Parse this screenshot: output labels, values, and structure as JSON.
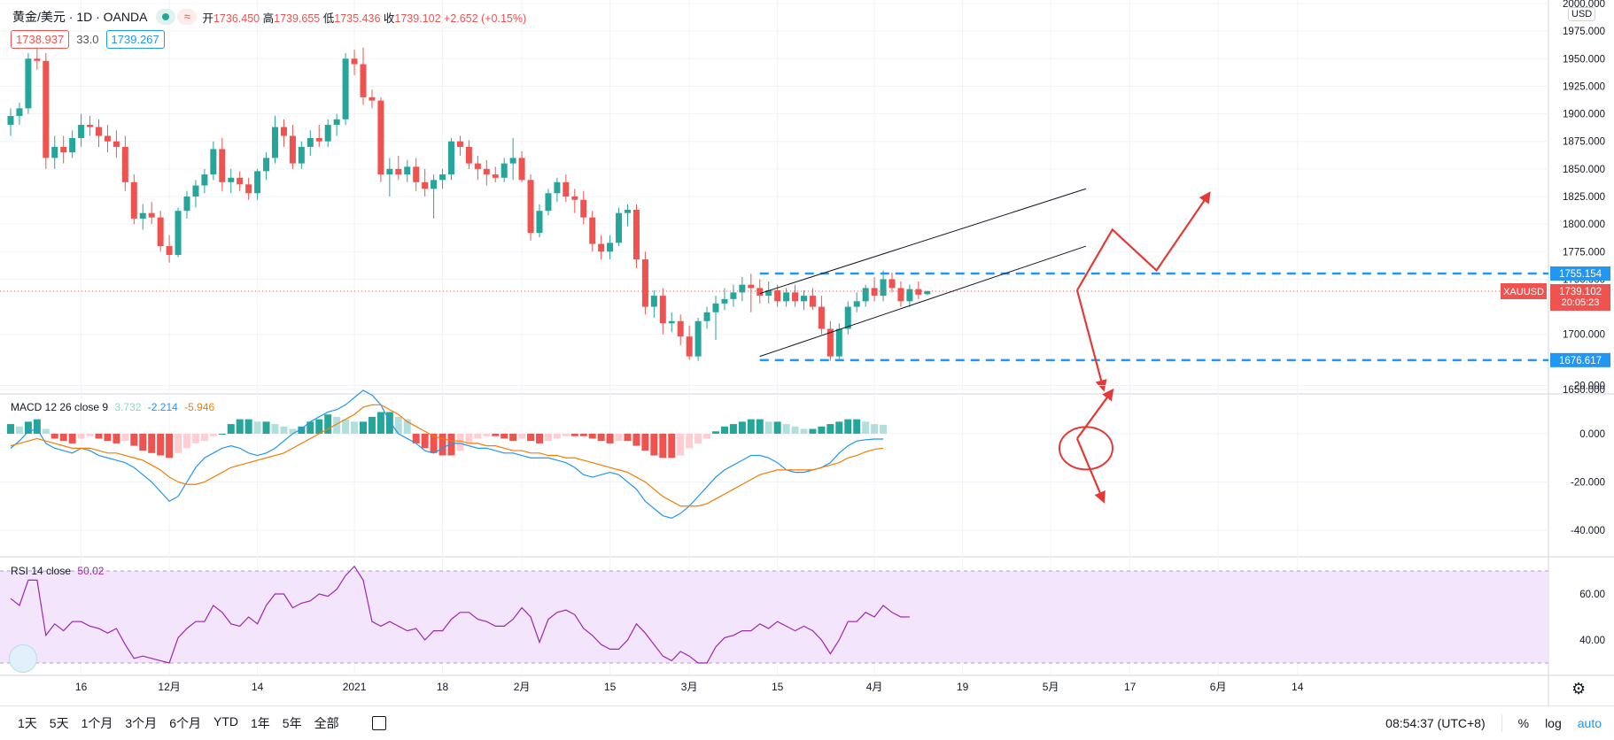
{
  "header": {
    "symbol": "黄金/美元 · 1D · OANDA",
    "ohlc": {
      "open_label": "开",
      "open": "1736.450",
      "high_label": "高",
      "high": "1739.655",
      "low_label": "低",
      "low": "1735.436",
      "close_label": "收",
      "close": "1739.102",
      "change": "+2.652 (+0.15%)"
    },
    "bid": "1738.937",
    "spread": "33.0",
    "ask": "1739.267",
    "currency": "USD",
    "pill_glyph": "≈"
  },
  "macd_label": {
    "name": "MACD 12 26 close 9",
    "hist": "3.732",
    "macd": "-2.214",
    "signal": "-5.946"
  },
  "rsi_label": {
    "name": "RSI 14 close",
    "value": "50.02"
  },
  "colors": {
    "up": "#26a69a",
    "down": "#ef5350",
    "macd": "#2196f3",
    "signal": "#f57c00",
    "rsi": "#9c27b0",
    "rsi_band": "#f3e5fc",
    "annotation": "#e53935",
    "level": "#2196f3"
  },
  "bottom": {
    "ranges": [
      "1天",
      "5天",
      "1个月",
      "3个月",
      "6个月",
      "YTD",
      "1年",
      "5年",
      "全部"
    ],
    "clock": "08:54:37 (UTC+8)",
    "percent": "%",
    "log": "log",
    "auto": "auto"
  },
  "chart_data": {
    "type": "candlestick",
    "price_axis": {
      "ticks": [
        "2000.000",
        "1975.000",
        "1950.000",
        "1925.000",
        "1900.000",
        "1875.000",
        "1850.000",
        "1825.000",
        "1800.000",
        "1775.000",
        "1750.000",
        "1700.000",
        "1650.000"
      ],
      "range": [
        1650,
        2000
      ]
    },
    "x_axis": {
      "ticks": [
        "16",
        "12月",
        "14",
        "2021",
        "18",
        "2月",
        "15",
        "3月",
        "15",
        "4月",
        "19",
        "5月",
        "17",
        "6月",
        "14"
      ]
    },
    "price_labels": [
      {
        "text": "1755.154",
        "value": 1755.154,
        "color": "#2196f3"
      },
      {
        "text": "XAUUSD",
        "value": 1739.102,
        "color": "#ef5350"
      },
      {
        "text": "1739.102",
        "value": 1739.102,
        "color": "#ef5350"
      },
      {
        "text": "20:05:23",
        "value": 1739.102,
        "color": "#ef5350"
      },
      {
        "text": "1676.617",
        "value": 1676.617,
        "color": "#2196f3"
      }
    ],
    "candles": [
      {
        "o": 1890,
        "h": 1905,
        "l": 1880,
        "c": 1898
      },
      {
        "o": 1898,
        "h": 1910,
        "l": 1890,
        "c": 1905
      },
      {
        "o": 1905,
        "h": 1955,
        "l": 1900,
        "c": 1950
      },
      {
        "o": 1950,
        "h": 1960,
        "l": 1940,
        "c": 1948
      },
      {
        "o": 1948,
        "h": 1955,
        "l": 1850,
        "c": 1860
      },
      {
        "o": 1860,
        "h": 1880,
        "l": 1850,
        "c": 1870
      },
      {
        "o": 1870,
        "h": 1880,
        "l": 1855,
        "c": 1865
      },
      {
        "o": 1865,
        "h": 1885,
        "l": 1860,
        "c": 1878
      },
      {
        "o": 1878,
        "h": 1900,
        "l": 1870,
        "c": 1890
      },
      {
        "o": 1890,
        "h": 1898,
        "l": 1880,
        "c": 1888
      },
      {
        "o": 1888,
        "h": 1895,
        "l": 1870,
        "c": 1880
      },
      {
        "o": 1880,
        "h": 1890,
        "l": 1865,
        "c": 1875
      },
      {
        "o": 1875,
        "h": 1885,
        "l": 1860,
        "c": 1870
      },
      {
        "o": 1870,
        "h": 1880,
        "l": 1830,
        "c": 1838
      },
      {
        "o": 1838,
        "h": 1845,
        "l": 1800,
        "c": 1805
      },
      {
        "o": 1805,
        "h": 1818,
        "l": 1795,
        "c": 1810
      },
      {
        "o": 1810,
        "h": 1820,
        "l": 1800,
        "c": 1806
      },
      {
        "o": 1806,
        "h": 1812,
        "l": 1775,
        "c": 1780
      },
      {
        "o": 1780,
        "h": 1790,
        "l": 1765,
        "c": 1772
      },
      {
        "o": 1772,
        "h": 1815,
        "l": 1770,
        "c": 1812
      },
      {
        "o": 1812,
        "h": 1830,
        "l": 1805,
        "c": 1825
      },
      {
        "o": 1825,
        "h": 1840,
        "l": 1815,
        "c": 1835
      },
      {
        "o": 1835,
        "h": 1850,
        "l": 1828,
        "c": 1845
      },
      {
        "o": 1845,
        "h": 1875,
        "l": 1840,
        "c": 1868
      },
      {
        "o": 1868,
        "h": 1878,
        "l": 1830,
        "c": 1838
      },
      {
        "o": 1838,
        "h": 1850,
        "l": 1828,
        "c": 1842
      },
      {
        "o": 1842,
        "h": 1848,
        "l": 1830,
        "c": 1836
      },
      {
        "o": 1836,
        "h": 1842,
        "l": 1822,
        "c": 1828
      },
      {
        "o": 1828,
        "h": 1850,
        "l": 1822,
        "c": 1848
      },
      {
        "o": 1848,
        "h": 1865,
        "l": 1840,
        "c": 1860
      },
      {
        "o": 1860,
        "h": 1898,
        "l": 1855,
        "c": 1888
      },
      {
        "o": 1888,
        "h": 1895,
        "l": 1870,
        "c": 1880
      },
      {
        "o": 1880,
        "h": 1890,
        "l": 1850,
        "c": 1855
      },
      {
        "o": 1855,
        "h": 1875,
        "l": 1850,
        "c": 1870
      },
      {
        "o": 1870,
        "h": 1885,
        "l": 1862,
        "c": 1878
      },
      {
        "o": 1878,
        "h": 1890,
        "l": 1870,
        "c": 1875
      },
      {
        "o": 1875,
        "h": 1895,
        "l": 1870,
        "c": 1890
      },
      {
        "o": 1890,
        "h": 1900,
        "l": 1880,
        "c": 1895
      },
      {
        "o": 1895,
        "h": 1955,
        "l": 1890,
        "c": 1950
      },
      {
        "o": 1950,
        "h": 1958,
        "l": 1935,
        "c": 1945
      },
      {
        "o": 1945,
        "h": 1960,
        "l": 1908,
        "c": 1915
      },
      {
        "o": 1915,
        "h": 1922,
        "l": 1905,
        "c": 1912
      },
      {
        "o": 1912,
        "h": 1915,
        "l": 1838,
        "c": 1845
      },
      {
        "o": 1845,
        "h": 1860,
        "l": 1825,
        "c": 1850
      },
      {
        "o": 1850,
        "h": 1862,
        "l": 1840,
        "c": 1845
      },
      {
        "o": 1845,
        "h": 1858,
        "l": 1838,
        "c": 1852
      },
      {
        "o": 1852,
        "h": 1860,
        "l": 1830,
        "c": 1838
      },
      {
        "o": 1838,
        "h": 1850,
        "l": 1825,
        "c": 1832
      },
      {
        "o": 1832,
        "h": 1845,
        "l": 1805,
        "c": 1840
      },
      {
        "o": 1840,
        "h": 1850,
        "l": 1832,
        "c": 1845
      },
      {
        "o": 1845,
        "h": 1878,
        "l": 1840,
        "c": 1875
      },
      {
        "o": 1875,
        "h": 1880,
        "l": 1862,
        "c": 1870
      },
      {
        "o": 1870,
        "h": 1876,
        "l": 1850,
        "c": 1855
      },
      {
        "o": 1855,
        "h": 1862,
        "l": 1840,
        "c": 1850
      },
      {
        "o": 1850,
        "h": 1858,
        "l": 1835,
        "c": 1845
      },
      {
        "o": 1845,
        "h": 1852,
        "l": 1838,
        "c": 1842
      },
      {
        "o": 1842,
        "h": 1860,
        "l": 1838,
        "c": 1855
      },
      {
        "o": 1855,
        "h": 1878,
        "l": 1840,
        "c": 1860
      },
      {
        "o": 1860,
        "h": 1866,
        "l": 1838,
        "c": 1840
      },
      {
        "o": 1840,
        "h": 1845,
        "l": 1785,
        "c": 1792
      },
      {
        "o": 1792,
        "h": 1818,
        "l": 1788,
        "c": 1812
      },
      {
        "o": 1812,
        "h": 1832,
        "l": 1808,
        "c": 1828
      },
      {
        "o": 1828,
        "h": 1842,
        "l": 1820,
        "c": 1838
      },
      {
        "o": 1838,
        "h": 1845,
        "l": 1820,
        "c": 1825
      },
      {
        "o": 1825,
        "h": 1832,
        "l": 1810,
        "c": 1822
      },
      {
        "o": 1822,
        "h": 1830,
        "l": 1800,
        "c": 1806
      },
      {
        "o": 1806,
        "h": 1812,
        "l": 1775,
        "c": 1782
      },
      {
        "o": 1782,
        "h": 1790,
        "l": 1768,
        "c": 1775
      },
      {
        "o": 1775,
        "h": 1790,
        "l": 1768,
        "c": 1783
      },
      {
        "o": 1783,
        "h": 1815,
        "l": 1780,
        "c": 1810
      },
      {
        "o": 1810,
        "h": 1818,
        "l": 1798,
        "c": 1813
      },
      {
        "o": 1813,
        "h": 1818,
        "l": 1760,
        "c": 1768
      },
      {
        "o": 1768,
        "h": 1775,
        "l": 1718,
        "c": 1725
      },
      {
        "o": 1725,
        "h": 1740,
        "l": 1715,
        "c": 1735
      },
      {
        "o": 1735,
        "h": 1742,
        "l": 1700,
        "c": 1710
      },
      {
        "o": 1710,
        "h": 1720,
        "l": 1702,
        "c": 1712
      },
      {
        "o": 1712,
        "h": 1718,
        "l": 1690,
        "c": 1698
      },
      {
        "o": 1698,
        "h": 1708,
        "l": 1677,
        "c": 1680
      },
      {
        "o": 1680,
        "h": 1715,
        "l": 1676,
        "c": 1712
      },
      {
        "o": 1712,
        "h": 1725,
        "l": 1705,
        "c": 1720
      },
      {
        "o": 1720,
        "h": 1735,
        "l": 1695,
        "c": 1728
      },
      {
        "o": 1728,
        "h": 1742,
        "l": 1722,
        "c": 1732
      },
      {
        "o": 1732,
        "h": 1745,
        "l": 1725,
        "c": 1738
      },
      {
        "o": 1738,
        "h": 1752,
        "l": 1730,
        "c": 1745
      },
      {
        "o": 1745,
        "h": 1755,
        "l": 1720,
        "c": 1742
      },
      {
        "o": 1742,
        "h": 1750,
        "l": 1728,
        "c": 1735
      },
      {
        "o": 1735,
        "h": 1748,
        "l": 1728,
        "c": 1740
      },
      {
        "o": 1740,
        "h": 1745,
        "l": 1725,
        "c": 1730
      },
      {
        "o": 1730,
        "h": 1742,
        "l": 1725,
        "c": 1738
      },
      {
        "o": 1738,
        "h": 1745,
        "l": 1725,
        "c": 1730
      },
      {
        "o": 1730,
        "h": 1740,
        "l": 1722,
        "c": 1735
      },
      {
        "o": 1735,
        "h": 1742,
        "l": 1722,
        "c": 1725
      },
      {
        "o": 1725,
        "h": 1735,
        "l": 1700,
        "c": 1705
      },
      {
        "o": 1705,
        "h": 1712,
        "l": 1676,
        "c": 1680
      },
      {
        "o": 1680,
        "h": 1710,
        "l": 1676,
        "c": 1705
      },
      {
        "o": 1705,
        "h": 1730,
        "l": 1700,
        "c": 1725
      },
      {
        "o": 1725,
        "h": 1738,
        "l": 1720,
        "c": 1730
      },
      {
        "o": 1730,
        "h": 1745,
        "l": 1725,
        "c": 1742
      },
      {
        "o": 1742,
        "h": 1752,
        "l": 1730,
        "c": 1735
      },
      {
        "o": 1735,
        "h": 1758,
        "l": 1730,
        "c": 1750
      },
      {
        "o": 1750,
        "h": 1756,
        "l": 1738,
        "c": 1742
      },
      {
        "o": 1742,
        "h": 1748,
        "l": 1725,
        "c": 1730
      },
      {
        "o": 1730,
        "h": 1745,
        "l": 1725,
        "c": 1741
      },
      {
        "o": 1741,
        "h": 1748,
        "l": 1732,
        "c": 1736
      },
      {
        "o": 1736.45,
        "h": 1739.655,
        "l": 1735.436,
        "c": 1739.102
      }
    ],
    "drawings": {
      "channel_upper": [
        [
          85,
          1737
        ],
        [
          122,
          1832
        ]
      ],
      "channel_lower": [
        [
          85,
          1680
        ],
        [
          122,
          1780
        ]
      ],
      "levels": [
        1755.154,
        1676.617
      ],
      "arrows_main": [
        [
          [
            121,
            1740
          ],
          [
            125,
            1795
          ],
          [
            130,
            1758
          ],
          [
            136,
            1828
          ]
        ],
        [
          [
            121,
            1740
          ],
          [
            124,
            1650
          ]
        ]
      ],
      "arrows_macd": [
        [
          [
            121,
            -2
          ],
          [
            125,
            18
          ]
        ],
        [
          [
            121,
            -2
          ],
          [
            124,
            -28
          ]
        ]
      ],
      "ellipse_macd": [
        121,
        -6
      ]
    },
    "macd": {
      "axis_ticks": [
        "20.000",
        "0.000",
        "-20.000",
        "-40.000"
      ],
      "range": [
        -44,
        24
      ],
      "hist": [
        4,
        3,
        5,
        6,
        2,
        -2,
        -3,
        -4,
        -2,
        -1,
        -2,
        -3,
        -4,
        -3,
        -5,
        -7,
        -8,
        -9,
        -10,
        -8,
        -6,
        -4,
        -3,
        -1,
        0,
        4,
        6,
        6,
        5,
        5,
        4,
        3,
        2,
        3,
        5,
        6,
        8,
        7,
        6,
        5,
        5,
        7,
        9,
        9,
        7,
        6,
        -4,
        -6,
        -8,
        -9,
        -9,
        -7,
        -4,
        -2,
        -1,
        -1,
        -2,
        -3,
        -2,
        -3,
        -4,
        -3,
        -2,
        -1,
        -1,
        -1,
        -2,
        -3,
        -4,
        -3,
        -3,
        -5,
        -7,
        -9,
        -10,
        -10,
        -9,
        -6,
        -4,
        -2,
        1,
        3,
        4,
        5,
        6,
        6,
        5,
        5,
        4,
        3,
        2,
        2,
        3,
        4,
        5,
        6,
        6,
        5,
        4,
        3.7
      ],
      "macd": [
        -6,
        -3,
        1,
        2,
        -4,
        -6,
        -7,
        -8,
        -6,
        -7,
        -9,
        -10,
        -11,
        -12,
        -14,
        -17,
        -20,
        -24,
        -28,
        -26,
        -20,
        -14,
        -10,
        -8,
        -6,
        -5,
        -6,
        -8,
        -9,
        -8,
        -6,
        -3,
        0,
        2,
        5,
        7,
        9,
        10,
        12,
        15,
        18,
        16,
        12,
        5,
        0,
        -2,
        -4,
        -7,
        -8,
        -6,
        -4,
        -4,
        -5,
        -6,
        -6,
        -7,
        -8,
        -8,
        -9,
        -10,
        -10,
        -10,
        -11,
        -12,
        -14,
        -17,
        -18,
        -17,
        -16,
        -17,
        -20,
        -23,
        -28,
        -31,
        -34,
        -35,
        -33,
        -30,
        -26,
        -22,
        -18,
        -15,
        -13,
        -11,
        -9,
        -9,
        -10,
        -12,
        -15,
        -16,
        -16,
        -15,
        -14,
        -12,
        -8,
        -5,
        -3,
        -2.5,
        -2.2,
        -2.214
      ],
      "signal": [
        -5,
        -4,
        -3,
        -2,
        -3,
        -4,
        -5,
        -6,
        -6,
        -6,
        -7,
        -8,
        -8,
        -9,
        -10,
        -11,
        -13,
        -15,
        -18,
        -20,
        -21,
        -21,
        -20,
        -18,
        -16,
        -14,
        -13,
        -12,
        -11,
        -10,
        -9,
        -8,
        -6,
        -4,
        -2,
        0,
        2,
        4,
        6,
        8,
        11,
        12,
        12,
        10,
        8,
        5,
        3,
        1,
        -1,
        -2,
        -3,
        -3,
        -4,
        -4,
        -5,
        -5,
        -6,
        -7,
        -7,
        -8,
        -8,
        -9,
        -9,
        -10,
        -10,
        -11,
        -12,
        -13,
        -14,
        -15,
        -16,
        -18,
        -20,
        -23,
        -26,
        -28,
        -30,
        -30,
        -30,
        -29,
        -27,
        -25,
        -23,
        -21,
        -19,
        -17,
        -16,
        -15,
        -15,
        -15,
        -15,
        -15,
        -14,
        -13,
        -12,
        -10,
        -9,
        -7.5,
        -6.5,
        -5.946
      ]
    },
    "rsi": {
      "axis_ticks": [
        "60.00",
        "40.00"
      ],
      "range": [
        25,
        75
      ],
      "levels": [
        70,
        30
      ],
      "values": [
        58,
        55,
        66,
        66,
        42,
        47,
        44,
        48,
        48,
        46,
        45,
        43,
        45,
        38,
        32,
        33,
        32,
        31,
        30,
        41,
        45,
        48,
        48,
        55,
        52,
        47,
        46,
        50,
        47,
        55,
        60,
        60,
        54,
        56,
        57,
        60,
        59,
        62,
        68,
        72,
        66,
        48,
        46,
        48,
        46,
        44,
        45,
        40,
        44,
        44,
        49,
        52,
        52,
        49,
        48,
        46,
        46,
        49,
        54,
        50,
        39,
        49,
        52,
        53,
        51,
        45,
        42,
        38,
        36,
        36,
        40,
        47,
        43,
        38,
        33,
        31,
        35,
        33,
        30,
        30,
        37,
        41,
        42,
        44,
        44,
        47,
        45,
        48,
        46,
        44,
        46,
        44,
        40,
        34,
        40,
        48,
        48,
        52,
        50,
        55,
        52,
        50,
        50.02
      ]
    }
  }
}
